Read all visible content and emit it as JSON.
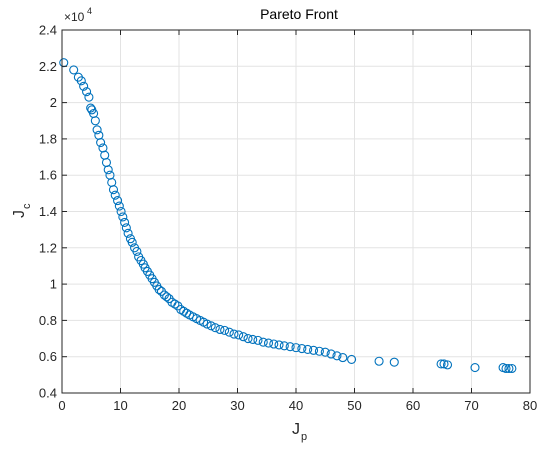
{
  "chart_data": {
    "type": "scatter",
    "title": "Pareto Front",
    "xlabel": {
      "main": "J",
      "sub": "p"
    },
    "ylabel": {
      "main": "J",
      "sub": "c"
    },
    "y_multiplier": {
      "base": "×10",
      "exp": "4"
    },
    "xlim": [
      0,
      80
    ],
    "ylim": [
      0.4,
      2.4
    ],
    "x_ticks": [
      0,
      10,
      20,
      30,
      40,
      50,
      60,
      70,
      80
    ],
    "y_ticks": [
      0.4,
      0.6,
      0.8,
      1,
      1.2,
      1.4,
      1.6,
      1.8,
      2,
      2.2,
      2.4
    ],
    "y_tick_labels": [
      "0.4",
      "0.6",
      "0.8",
      "1",
      "1.2",
      "1.4",
      "1.6",
      "1.8",
      "2",
      "2.2",
      "2.4"
    ],
    "grid": true,
    "marker": "open-circle",
    "marker_color": "#0072BD",
    "series": [
      {
        "x": [
          0.3,
          2.0,
          2.8,
          3.3,
          3.7,
          4.2,
          4.6,
          4.9,
          5.1,
          5.4,
          5.7,
          6.0,
          6.3,
          6.6,
          7.0,
          7.3,
          7.6,
          7.9,
          8.2,
          8.5,
          8.8,
          9.1,
          9.5,
          9.8,
          10.1,
          10.4,
          10.7,
          11.0,
          11.3,
          11.7,
          12.0,
          12.4,
          12.8,
          13.1,
          13.5,
          13.9,
          14.2,
          14.6,
          15.0,
          15.4,
          15.8,
          16.2,
          16.6,
          17.0,
          17.5,
          17.9,
          18.3,
          18.8,
          19.3,
          19.8,
          20.3,
          20.8,
          21.3,
          21.8,
          22.4,
          23.0,
          23.6,
          24.2,
          24.8,
          25.5,
          26.2,
          27.0,
          27.8,
          28.6,
          29.4,
          30.2,
          31.0,
          31.8,
          32.6,
          33.5,
          34.4,
          35.3,
          36.2,
          37.1,
          38.0,
          39.0,
          40.0,
          41.0,
          42.0,
          43.0,
          44.0,
          45.0,
          46.0,
          47.0,
          48.0,
          49.5,
          54.2,
          56.8,
          64.8,
          65.3,
          65.9,
          70.6,
          75.4,
          75.9,
          76.4,
          76.9
        ],
        "y": [
          2.22,
          2.18,
          2.14,
          2.12,
          2.09,
          2.06,
          2.03,
          1.97,
          1.96,
          1.94,
          1.9,
          1.85,
          1.82,
          1.78,
          1.75,
          1.71,
          1.67,
          1.63,
          1.6,
          1.56,
          1.52,
          1.49,
          1.46,
          1.43,
          1.4,
          1.37,
          1.34,
          1.31,
          1.28,
          1.25,
          1.23,
          1.2,
          1.18,
          1.15,
          1.13,
          1.11,
          1.09,
          1.07,
          1.05,
          1.03,
          1.01,
          0.99,
          0.97,
          0.96,
          0.94,
          0.93,
          0.92,
          0.9,
          0.89,
          0.88,
          0.86,
          0.85,
          0.84,
          0.83,
          0.82,
          0.81,
          0.8,
          0.79,
          0.78,
          0.77,
          0.76,
          0.75,
          0.745,
          0.735,
          0.725,
          0.72,
          0.71,
          0.7,
          0.695,
          0.69,
          0.68,
          0.675,
          0.67,
          0.665,
          0.66,
          0.655,
          0.65,
          0.645,
          0.64,
          0.635,
          0.63,
          0.625,
          0.615,
          0.605,
          0.595,
          0.585,
          0.575,
          0.57,
          0.56,
          0.56,
          0.555,
          0.54,
          0.54,
          0.535,
          0.535,
          0.535
        ]
      }
    ]
  }
}
